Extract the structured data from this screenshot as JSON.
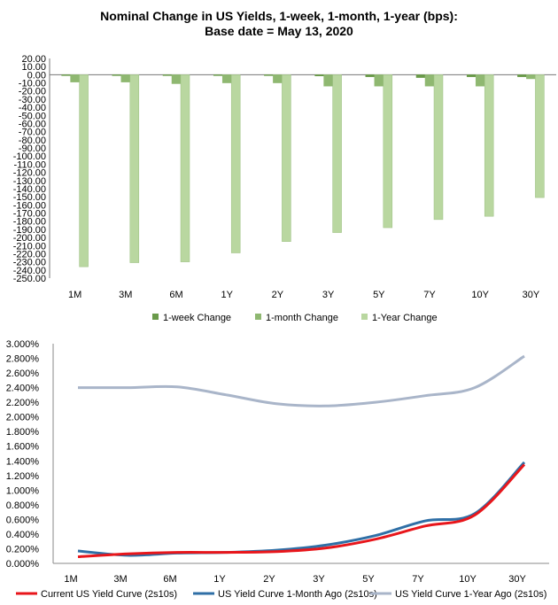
{
  "chart_data": [
    {
      "type": "bar",
      "title": "Nominal Change in US Yields, 1-week, 1-month, 1-year (bps):",
      "subtitle": "Base date = May 13, 2020",
      "categories": [
        "1M",
        "3M",
        "6M",
        "1Y",
        "2Y",
        "3Y",
        "5Y",
        "7Y",
        "10Y",
        "30Y"
      ],
      "series": [
        {
          "name": "1-week Change",
          "color": "#6a9a4a",
          "values": [
            -0.5,
            -0.5,
            -0.5,
            -0.5,
            -0.3,
            -1.5,
            -2.5,
            -3.5,
            -2.5,
            -2.5
          ]
        },
        {
          "name": "1-month Change",
          "color": "#8fb871",
          "values": [
            -9,
            -9,
            -11,
            -10,
            -10,
            -14,
            -14,
            -14,
            -14,
            -5
          ]
        },
        {
          "name": "1-Year Change",
          "color": "#b9d7a0",
          "values": [
            -236,
            -231,
            -230,
            -219,
            -205,
            -194,
            -188,
            -178,
            -174,
            -151
          ]
        }
      ],
      "ylim": [
        -250,
        20
      ],
      "yticks": [
        "20.00",
        "10.00",
        "0.00",
        "-10.00",
        "-20.00",
        "-30.00",
        "-40.00",
        "-50.00",
        "-60.00",
        "-70.00",
        "-80.00",
        "-90.00",
        "-100.00",
        "-110.00",
        "-120.00",
        "-130.00",
        "-140.00",
        "-150.00",
        "-160.00",
        "-170.00",
        "-180.00",
        "-190.00",
        "-200.00",
        "-210.00",
        "-220.00",
        "-230.00",
        "-240.00",
        "-250.00"
      ],
      "legend": "bottom"
    },
    {
      "type": "line",
      "categories": [
        "1M",
        "3M",
        "6M",
        "1Y",
        "2Y",
        "3Y",
        "5Y",
        "7Y",
        "10Y",
        "30Y"
      ],
      "series": [
        {
          "name": "Current US Yield Curve (2s10s)",
          "color": "#e8161b",
          "values": [
            0.09,
            0.13,
            0.15,
            0.15,
            0.16,
            0.21,
            0.33,
            0.51,
            0.66,
            1.35
          ]
        },
        {
          "name": "US Yield Curve 1-Month Ago (2s10s)",
          "color": "#2f6fa6",
          "values": [
            0.17,
            0.11,
            0.14,
            0.15,
            0.18,
            0.25,
            0.38,
            0.58,
            0.68,
            1.38
          ]
        },
        {
          "name": "US Yield Curve 1-Year Ago (2s10s)",
          "color": "#a9b5c9",
          "values": [
            2.4,
            2.4,
            2.41,
            2.3,
            2.18,
            2.15,
            2.2,
            2.29,
            2.4,
            2.83
          ]
        }
      ],
      "ylim": [
        0,
        3.0
      ],
      "yticks": [
        "3.000%",
        "2.800%",
        "2.600%",
        "2.400%",
        "2.200%",
        "2.000%",
        "1.800%",
        "1.600%",
        "1.400%",
        "1.200%",
        "1.000%",
        "0.800%",
        "0.600%",
        "0.400%",
        "0.200%",
        "0.000%"
      ],
      "legend": "bottom"
    }
  ]
}
